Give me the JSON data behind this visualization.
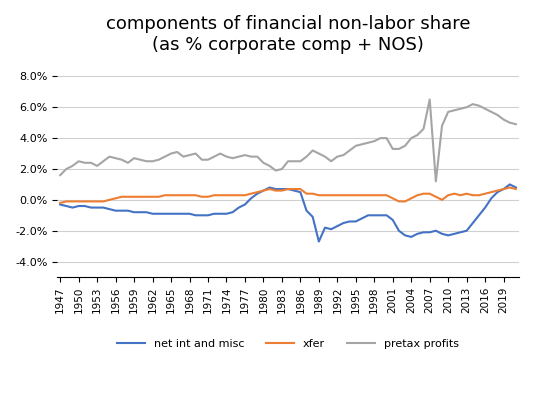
{
  "title": "components of financial non-labor share\n(as % corporate comp + NOS)",
  "title_fontsize": 13,
  "legend_labels": [
    "net int and misc",
    "xfer",
    "pretax profits"
  ],
  "legend_colors": [
    "#4472c4",
    "#ed7d31",
    "#a5a5a5"
  ],
  "ylim": [
    -0.05,
    0.09
  ],
  "yticks": [
    -0.04,
    -0.02,
    0.0,
    0.02,
    0.04,
    0.06,
    0.08
  ],
  "years": [
    1947,
    1948,
    1949,
    1950,
    1951,
    1952,
    1953,
    1954,
    1955,
    1956,
    1957,
    1958,
    1959,
    1960,
    1961,
    1962,
    1963,
    1964,
    1965,
    1966,
    1967,
    1968,
    1969,
    1970,
    1971,
    1972,
    1973,
    1974,
    1975,
    1976,
    1977,
    1978,
    1979,
    1980,
    1981,
    1982,
    1983,
    1984,
    1985,
    1986,
    1987,
    1988,
    1989,
    1990,
    1991,
    1992,
    1993,
    1994,
    1995,
    1996,
    1997,
    1998,
    1999,
    2000,
    2001,
    2002,
    2003,
    2004,
    2005,
    2006,
    2007,
    2008,
    2009,
    2010,
    2011,
    2012,
    2013,
    2014,
    2015,
    2016,
    2017,
    2018,
    2019,
    2020,
    2021
  ],
  "net_int_misc": [
    -0.003,
    -0.004,
    -0.005,
    -0.004,
    -0.004,
    -0.005,
    -0.005,
    -0.005,
    -0.006,
    -0.007,
    -0.007,
    -0.007,
    -0.008,
    -0.008,
    -0.008,
    -0.009,
    -0.009,
    -0.009,
    -0.009,
    -0.009,
    -0.009,
    -0.009,
    -0.01,
    -0.01,
    -0.01,
    -0.009,
    -0.009,
    -0.009,
    -0.008,
    -0.005,
    -0.003,
    0.001,
    0.004,
    0.006,
    0.008,
    0.007,
    0.007,
    0.007,
    0.006,
    0.005,
    -0.007,
    -0.011,
    -0.027,
    -0.018,
    -0.019,
    -0.017,
    -0.015,
    -0.014,
    -0.014,
    -0.012,
    -0.01,
    -0.01,
    -0.01,
    -0.01,
    -0.013,
    -0.02,
    -0.023,
    -0.024,
    -0.022,
    -0.021,
    -0.021,
    -0.02,
    -0.022,
    -0.023,
    -0.022,
    -0.021,
    -0.02,
    -0.015,
    -0.01,
    -0.005,
    0.001,
    0.005,
    0.007,
    0.01,
    0.008
  ],
  "xfer": [
    -0.002,
    -0.001,
    -0.001,
    -0.001,
    -0.001,
    -0.001,
    -0.001,
    -0.001,
    0.0,
    0.001,
    0.002,
    0.002,
    0.002,
    0.002,
    0.002,
    0.002,
    0.002,
    0.003,
    0.003,
    0.003,
    0.003,
    0.003,
    0.003,
    0.002,
    0.002,
    0.003,
    0.003,
    0.003,
    0.003,
    0.003,
    0.003,
    0.004,
    0.005,
    0.006,
    0.007,
    0.006,
    0.006,
    0.007,
    0.007,
    0.007,
    0.004,
    0.004,
    0.003,
    0.003,
    0.003,
    0.003,
    0.003,
    0.003,
    0.003,
    0.003,
    0.003,
    0.003,
    0.003,
    0.003,
    0.001,
    -0.001,
    -0.001,
    0.001,
    0.003,
    0.004,
    0.004,
    0.002,
    0.0,
    0.003,
    0.004,
    0.003,
    0.004,
    0.003,
    0.003,
    0.004,
    0.005,
    0.006,
    0.007,
    0.008,
    0.007
  ],
  "pretax_profits": [
    0.016,
    0.02,
    0.022,
    0.025,
    0.024,
    0.024,
    0.022,
    0.025,
    0.028,
    0.027,
    0.026,
    0.024,
    0.027,
    0.026,
    0.025,
    0.025,
    0.026,
    0.028,
    0.03,
    0.031,
    0.028,
    0.029,
    0.03,
    0.026,
    0.026,
    0.028,
    0.03,
    0.028,
    0.027,
    0.028,
    0.029,
    0.028,
    0.028,
    0.024,
    0.022,
    0.019,
    0.02,
    0.025,
    0.025,
    0.025,
    0.028,
    0.032,
    0.03,
    0.028,
    0.025,
    0.028,
    0.029,
    0.032,
    0.035,
    0.036,
    0.037,
    0.038,
    0.04,
    0.04,
    0.033,
    0.033,
    0.035,
    0.04,
    0.042,
    0.046,
    0.065,
    0.012,
    0.048,
    0.057,
    0.058,
    0.059,
    0.06,
    0.062,
    0.061,
    0.059,
    0.057,
    0.055,
    0.052,
    0.05,
    0.049
  ],
  "background_color": "#ffffff",
  "grid_color": "#d0d0d0",
  "line_width": 1.5
}
